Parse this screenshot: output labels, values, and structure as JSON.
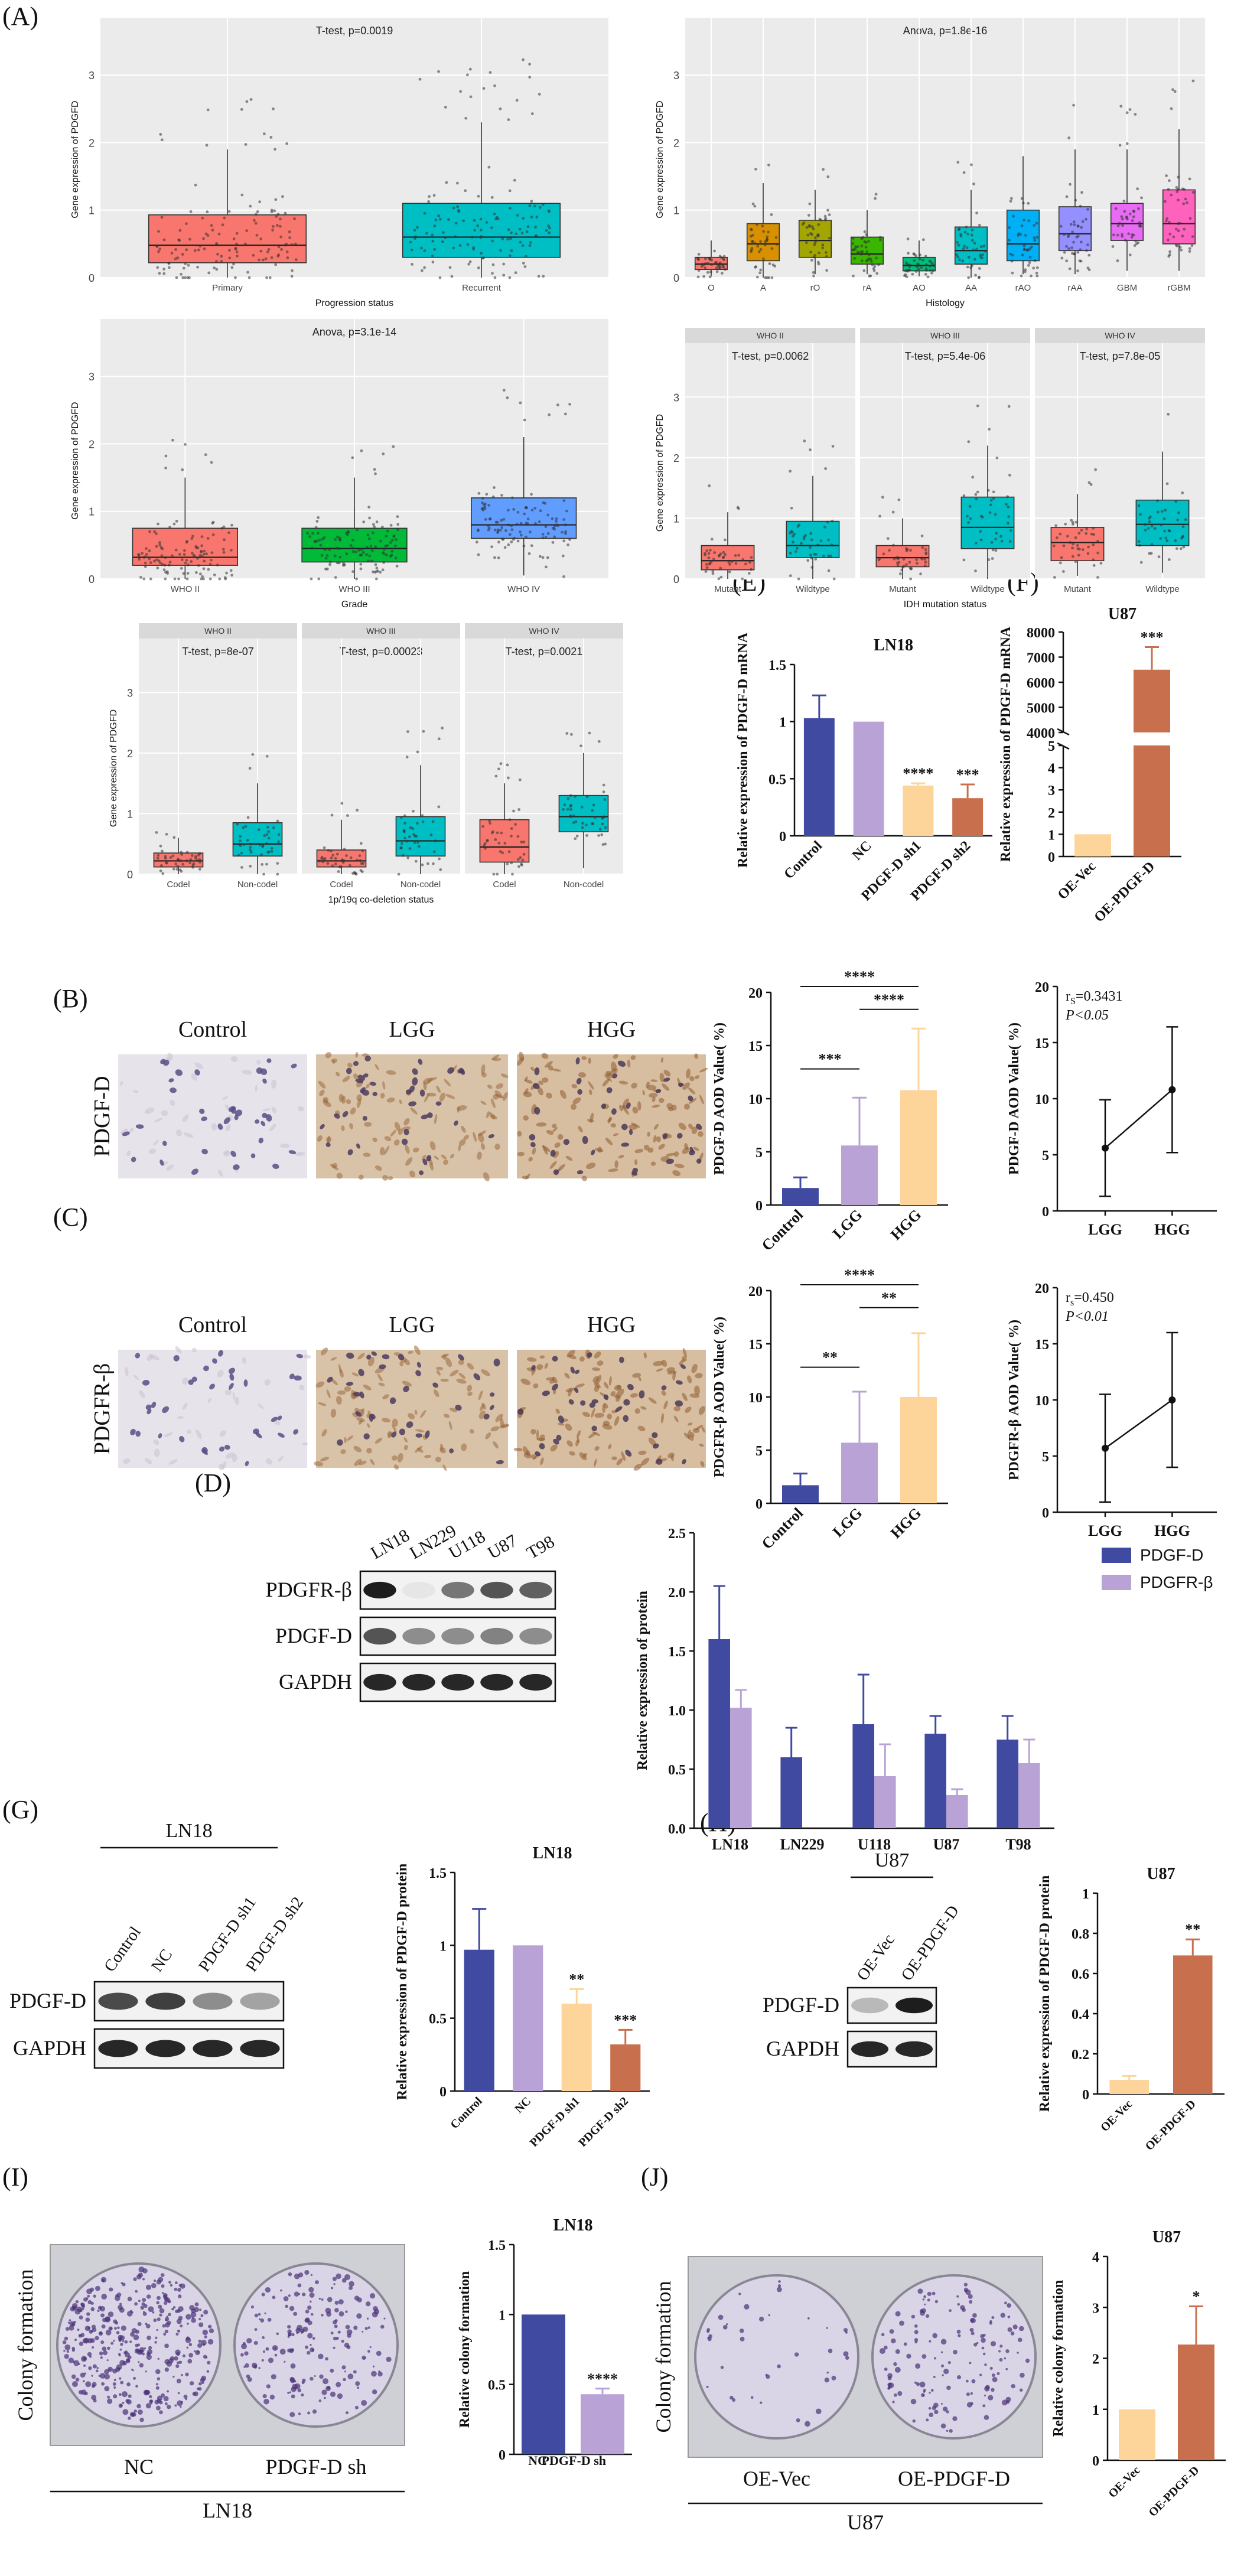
{
  "panel_labels": {
    "A": "(A)",
    "B": "(B)",
    "C": "(C)",
    "D": "(D)",
    "E": "(E)",
    "F": "(F)",
    "G": "(G)",
    "H": "(H)",
    "I": "(I)",
    "J": "(J)"
  },
  "colors": {
    "navy": "#3f4aa0",
    "lilac": "#b9a3d6",
    "peach": "#fdd49a",
    "rust": "#c8704d",
    "ggbg": "#ebebeb",
    "strip": "#d9d9d9"
  },
  "chart_data": [
    {
      "id": "a1",
      "type": "boxplot",
      "title": "T-test, p=0.0019",
      "xlabel": "Progression status",
      "ylabel": "Gene expression of PDGFD",
      "ylim": [
        0,
        3.5
      ],
      "yticks": [
        0,
        1,
        2,
        3
      ],
      "categories": [
        "Primary",
        "Recurrent"
      ],
      "boxes": [
        {
          "q1": 0.22,
          "median": 0.48,
          "q3": 0.93,
          "lo": 0.0,
          "hi": 1.9,
          "color": "#f8766d"
        },
        {
          "q1": 0.3,
          "median": 0.6,
          "q3": 1.1,
          "lo": 0.0,
          "hi": 2.3,
          "color": "#00bfc4"
        }
      ]
    },
    {
      "id": "a2",
      "type": "boxplot",
      "title": "Anova, p=1.8e-16",
      "xlabel": "Histology",
      "ylabel": "Gene expression of PDGFD",
      "ylim": [
        0,
        3.5
      ],
      "yticks": [
        0,
        1,
        2,
        3
      ],
      "categories": [
        "O",
        "A",
        "rO",
        "rA",
        "AO",
        "AA",
        "rAO",
        "rAA",
        "GBM",
        "rGBM"
      ],
      "boxes": [
        {
          "q1": 0.12,
          "median": 0.2,
          "q3": 0.3,
          "lo": 0.02,
          "hi": 0.55,
          "color": "#f8766d"
        },
        {
          "q1": 0.25,
          "median": 0.5,
          "q3": 0.8,
          "lo": 0.0,
          "hi": 1.4,
          "color": "#d89000"
        },
        {
          "q1": 0.3,
          "median": 0.55,
          "q3": 0.85,
          "lo": 0.05,
          "hi": 1.3,
          "color": "#a3a500"
        },
        {
          "q1": 0.2,
          "median": 0.35,
          "q3": 0.6,
          "lo": 0.05,
          "hi": 1.0,
          "color": "#39b600"
        },
        {
          "q1": 0.1,
          "median": 0.18,
          "q3": 0.3,
          "lo": 0.02,
          "hi": 0.55,
          "color": "#00bf7d"
        },
        {
          "q1": 0.2,
          "median": 0.4,
          "q3": 0.75,
          "lo": 0.0,
          "hi": 1.3,
          "color": "#00bfc4"
        },
        {
          "q1": 0.25,
          "median": 0.5,
          "q3": 1.0,
          "lo": 0.05,
          "hi": 1.8,
          "color": "#00b0f6"
        },
        {
          "q1": 0.4,
          "median": 0.65,
          "q3": 1.05,
          "lo": 0.05,
          "hi": 1.9,
          "color": "#9590ff"
        },
        {
          "q1": 0.55,
          "median": 0.8,
          "q3": 1.1,
          "lo": 0.1,
          "hi": 1.9,
          "color": "#e76bf3"
        },
        {
          "q1": 0.5,
          "median": 0.8,
          "q3": 1.3,
          "lo": 0.1,
          "hi": 2.2,
          "color": "#ff62bc"
        }
      ]
    },
    {
      "id": "a3",
      "type": "boxplot",
      "title": "Anova, p=3.1e-14",
      "xlabel": "Grade",
      "ylabel": "Gene expression of PDGFD",
      "ylim": [
        0,
        3.5
      ],
      "yticks": [
        0,
        1,
        2,
        3
      ],
      "categories": [
        "WHO II",
        "WHO III",
        "WHO IV"
      ],
      "boxes": [
        {
          "q1": 0.2,
          "median": 0.32,
          "q3": 0.75,
          "lo": 0.0,
          "hi": 1.5,
          "color": "#f8766d"
        },
        {
          "q1": 0.25,
          "median": 0.45,
          "q3": 0.75,
          "lo": 0.0,
          "hi": 1.5,
          "color": "#00ba38"
        },
        {
          "q1": 0.6,
          "median": 0.8,
          "q3": 1.2,
          "lo": 0.05,
          "hi": 2.1,
          "color": "#619cff"
        }
      ]
    },
    {
      "id": "a4",
      "type": "boxplot-facet",
      "xlabel": "IDH mutation status",
      "ylabel": "Gene expression of PDGFD",
      "ylim": [
        0,
        3.5
      ],
      "yticks": [
        0,
        1,
        2,
        3
      ],
      "facets": [
        {
          "strip": "WHO II",
          "title": "T-test, p=0.0062",
          "categories": [
            "Mutant",
            "Wildtype"
          ],
          "boxes": [
            {
              "q1": 0.15,
              "median": 0.3,
              "q3": 0.55,
              "lo": 0.0,
              "hi": 1.1,
              "color": "#f8766d"
            },
            {
              "q1": 0.35,
              "median": 0.55,
              "q3": 0.95,
              "lo": 0.0,
              "hi": 1.7,
              "color": "#00bfc4"
            }
          ]
        },
        {
          "strip": "WHO III",
          "title": "T-test, p=5.4e-06",
          "categories": [
            "Mutant",
            "Wildtype"
          ],
          "boxes": [
            {
              "q1": 0.2,
              "median": 0.35,
              "q3": 0.55,
              "lo": 0.0,
              "hi": 1.0,
              "color": "#f8766d"
            },
            {
              "q1": 0.5,
              "median": 0.85,
              "q3": 1.35,
              "lo": 0.0,
              "hi": 2.2,
              "color": "#00bfc4"
            }
          ]
        },
        {
          "strip": "WHO IV",
          "title": "T-test, p=7.8e-05",
          "categories": [
            "Mutant",
            "Wildtype"
          ],
          "boxes": [
            {
              "q1": 0.3,
              "median": 0.6,
              "q3": 0.85,
              "lo": 0.05,
              "hi": 1.4,
              "color": "#f8766d"
            },
            {
              "q1": 0.55,
              "median": 0.9,
              "q3": 1.3,
              "lo": 0.1,
              "hi": 2.1,
              "color": "#00bfc4"
            }
          ]
        }
      ]
    },
    {
      "id": "a5",
      "type": "boxplot-facet",
      "xlabel": "1p/19q co-deletion status",
      "ylabel": "Gene expression of PDGFD",
      "ylim": [
        0,
        3.5
      ],
      "yticks": [
        0,
        1,
        2,
        3
      ],
      "facets": [
        {
          "strip": "WHO II",
          "title": "T-test, p=8e-07",
          "categories": [
            "Codel",
            "Non-codel"
          ],
          "boxes": [
            {
              "q1": 0.12,
              "median": 0.22,
              "q3": 0.35,
              "lo": 0.0,
              "hi": 0.6,
              "color": "#f8766d"
            },
            {
              "q1": 0.3,
              "median": 0.5,
              "q3": 0.85,
              "lo": 0.0,
              "hi": 1.5,
              "color": "#00bfc4"
            }
          ]
        },
        {
          "strip": "WHO III",
          "title": "T-test, p=0.00023",
          "categories": [
            "Codel",
            "Non-codel"
          ],
          "boxes": [
            {
              "q1": 0.12,
              "median": 0.22,
              "q3": 0.4,
              "lo": 0.0,
              "hi": 0.9,
              "color": "#f8766d"
            },
            {
              "q1": 0.3,
              "median": 0.55,
              "q3": 0.95,
              "lo": 0.0,
              "hi": 1.8,
              "color": "#00bfc4"
            }
          ]
        },
        {
          "strip": "WHO IV",
          "title": "T-test, p=0.0021",
          "categories": [
            "Codel",
            "Non-codel"
          ],
          "boxes": [
            {
              "q1": 0.2,
              "median": 0.45,
              "q3": 0.9,
              "lo": 0.0,
              "hi": 1.5,
              "color": "#f8766d"
            },
            {
              "q1": 0.7,
              "median": 0.95,
              "q3": 1.3,
              "lo": 0.1,
              "hi": 2.0,
              "color": "#00bfc4"
            }
          ]
        }
      ]
    },
    {
      "id": "e",
      "type": "bar",
      "title": "LN18",
      "ylabel": "Relative expression of PDGF-D mRNA",
      "ylim": [
        0,
        1.5
      ],
      "yticks": [
        0.0,
        0.5,
        1.0,
        1.5
      ],
      "categories": [
        "Control",
        "NC",
        "PDGF-D sh1",
        "PDGF-D sh2"
      ],
      "values": [
        1.03,
        1.0,
        0.44,
        0.33
      ],
      "errors": [
        0.2,
        0.0,
        0.02,
        0.12
      ],
      "colors": [
        "#3f4aa0",
        "#b9a3d6",
        "#fdd49a",
        "#c8704d"
      ],
      "annotations": [
        "",
        "",
        "****",
        "***"
      ]
    },
    {
      "id": "f",
      "type": "bar",
      "title": "U87",
      "ylabel": "Relative expression of PDGF-D mRNA",
      "axis_break": [
        5,
        4000
      ],
      "yticks": [
        0,
        1,
        2,
        3,
        4,
        5,
        4000,
        5000,
        6000,
        7000,
        8000
      ],
      "categories": [
        "OE-Vec",
        "OE-PDGF-D"
      ],
      "values": [
        1.0,
        6500
      ],
      "errors": [
        0,
        900
      ],
      "colors": [
        "#fdd49a",
        "#c8704d"
      ],
      "annotations": [
        "",
        "***"
      ]
    },
    {
      "id": "b_bar",
      "type": "bar",
      "ylabel": "PDGF-D AOD Value( %)",
      "ylim": [
        0,
        20
      ],
      "yticks": [
        0,
        5,
        10,
        15,
        20
      ],
      "categories": [
        "Control",
        "LGG",
        "HGG"
      ],
      "values": [
        1.6,
        5.6,
        10.8
      ],
      "errors": [
        1.0,
        4.5,
        5.8
      ],
      "colors": [
        "#3f4aa0",
        "#b9a3d6",
        "#fdd49a"
      ],
      "brackets": [
        {
          "from": 0,
          "to": 1,
          "label": "***"
        },
        {
          "from": 1,
          "to": 2,
          "label": "****"
        },
        {
          "from": 0,
          "to": 2,
          "label": "****"
        }
      ]
    },
    {
      "id": "b_line",
      "type": "line",
      "ylabel": "PDGF-D AOD Value( %)",
      "ylim": [
        0,
        20
      ],
      "yticks": [
        0,
        5,
        10,
        15,
        20
      ],
      "categories": [
        "LGG",
        "HGG"
      ],
      "values": [
        5.6,
        10.8
      ],
      "errors": [
        4.3,
        5.6
      ],
      "stat1": "r",
      "stat1_sub": "S",
      "stat1_val": "=0.3431",
      "stat2": "P<0.05"
    },
    {
      "id": "c_bar",
      "type": "bar",
      "ylabel": "PDGFR-β AOD Value( %)",
      "ylim": [
        0,
        20
      ],
      "yticks": [
        0,
        5,
        10,
        15,
        20
      ],
      "categories": [
        "Control",
        "LGG",
        "HGG"
      ],
      "values": [
        1.7,
        5.7,
        10.0
      ],
      "errors": [
        1.1,
        4.8,
        6.0
      ],
      "colors": [
        "#3f4aa0",
        "#b9a3d6",
        "#fdd49a"
      ],
      "brackets": [
        {
          "from": 0,
          "to": 1,
          "label": "**"
        },
        {
          "from": 1,
          "to": 2,
          "label": "**"
        },
        {
          "from": 0,
          "to": 2,
          "label": "****"
        }
      ]
    },
    {
      "id": "c_line",
      "type": "line",
      "ylabel": "PDGFR-β AOD Value( %)",
      "ylim": [
        0,
        20
      ],
      "yticks": [
        0,
        5,
        10,
        15,
        20
      ],
      "categories": [
        "LGG",
        "HGG"
      ],
      "values": [
        5.7,
        10.0
      ],
      "errors": [
        4.8,
        6.0
      ],
      "stat1": "r",
      "stat1_sub": "s",
      "stat1_val": "=0.450",
      "stat2": "P<0.01"
    },
    {
      "id": "d_bar",
      "type": "bar-grouped",
      "ylabel": "Relative expression of protein",
      "ylim": [
        0,
        2.5
      ],
      "yticks": [
        0.0,
        0.5,
        1.0,
        1.5,
        2.0,
        2.5
      ],
      "categories": [
        "LN18",
        "LN229",
        "U118",
        "U87",
        "T98"
      ],
      "series": [
        {
          "name": "PDGF-D",
          "color": "#3f4aa0",
          "values": [
            1.6,
            0.6,
            0.88,
            0.8,
            0.75
          ],
          "errors": [
            0.45,
            0.25,
            0.42,
            0.15,
            0.2
          ]
        },
        {
          "name": "PDGFR-β",
          "color": "#b9a3d6",
          "values": [
            1.02,
            0.0,
            0.44,
            0.28,
            0.55
          ],
          "errors": [
            0.15,
            0.0,
            0.27,
            0.05,
            0.2
          ]
        }
      ]
    },
    {
      "id": "g_bar",
      "type": "bar",
      "title": "LN18",
      "ylabel": "Relative expression of PDGF-D protein",
      "ylim": [
        0,
        1.5
      ],
      "yticks": [
        0.0,
        0.5,
        1.0,
        1.5
      ],
      "categories": [
        "Control",
        "NC",
        "PDGF-D sh1",
        "PDGF-D sh2"
      ],
      "values": [
        0.97,
        1.0,
        0.6,
        0.32
      ],
      "errors": [
        0.28,
        0.0,
        0.1,
        0.1
      ],
      "colors": [
        "#3f4aa0",
        "#b9a3d6",
        "#fdd49a",
        "#c8704d"
      ],
      "annotations": [
        "",
        "",
        "**",
        "***"
      ]
    },
    {
      "id": "h_bar",
      "type": "bar",
      "title": "U87",
      "ylabel": "Relative expression of PDGF-D protein",
      "ylim": [
        0,
        1.0
      ],
      "yticks": [
        0.0,
        0.2,
        0.4,
        0.6,
        0.8,
        1.0
      ],
      "categories": [
        "OE-Vec",
        "OE-PDGF-D"
      ],
      "values": [
        0.07,
        0.69
      ],
      "errors": [
        0.02,
        0.08
      ],
      "colors": [
        "#fdd49a",
        "#c8704d"
      ],
      "annotations": [
        "",
        "**"
      ]
    },
    {
      "id": "i_bar",
      "type": "bar",
      "title": "LN18",
      "ylabel": "Relative colony formation",
      "ylim": [
        0,
        1.5
      ],
      "yticks": [
        0.0,
        0.5,
        1.0,
        1.5
      ],
      "categories": [
        "NC",
        "PDGF-D sh"
      ],
      "values": [
        1.0,
        0.43
      ],
      "errors": [
        0,
        0.04
      ],
      "colors": [
        "#3f4aa0",
        "#b9a3d6"
      ],
      "annotations": [
        "",
        "****"
      ]
    },
    {
      "id": "j_bar",
      "type": "bar",
      "title": "U87",
      "ylabel": "Relative colony formation",
      "ylim": [
        0,
        4
      ],
      "yticks": [
        0,
        1,
        2,
        3,
        4
      ],
      "categories": [
        "OE-Vec",
        "OE-PDGF-D"
      ],
      "values": [
        1.0,
        2.27
      ],
      "errors": [
        0,
        0.75
      ],
      "colors": [
        "#fdd49a",
        "#c8704d"
      ],
      "annotations": [
        "",
        "*"
      ]
    }
  ],
  "ihc": {
    "b": {
      "row_label": "PDGF-D",
      "cols": [
        "Control",
        "LGG",
        "HGG"
      ]
    },
    "c": {
      "row_label": "PDGFR-β",
      "cols": [
        "Control",
        "LGG",
        "HGG"
      ]
    }
  },
  "blots": {
    "d": {
      "lanes": [
        "LN18",
        "LN229",
        "U118",
        "U87",
        "T98"
      ],
      "rows": [
        "PDGFR-β",
        "PDGF-D",
        "GAPDH"
      ]
    },
    "g": {
      "header": "LN18",
      "lanes": [
        "Control",
        "NC",
        "PDGF-D sh1",
        "PDGF-D sh2"
      ],
      "rows": [
        "PDGF-D",
        "GAPDH"
      ]
    },
    "h": {
      "header": "U87",
      "lanes": [
        "OE-Vec",
        "OE-PDGF-D"
      ],
      "rows": [
        "PDGF-D",
        "GAPDH"
      ]
    }
  },
  "colony": {
    "i": {
      "side_label": "Colony formation",
      "plates": [
        "NC",
        "PDGF-D sh"
      ],
      "footer": "LN18"
    },
    "j": {
      "side_label": "Colony formation",
      "plates": [
        "OE-Vec",
        "OE-PDGF-D"
      ],
      "footer": "U87"
    }
  }
}
